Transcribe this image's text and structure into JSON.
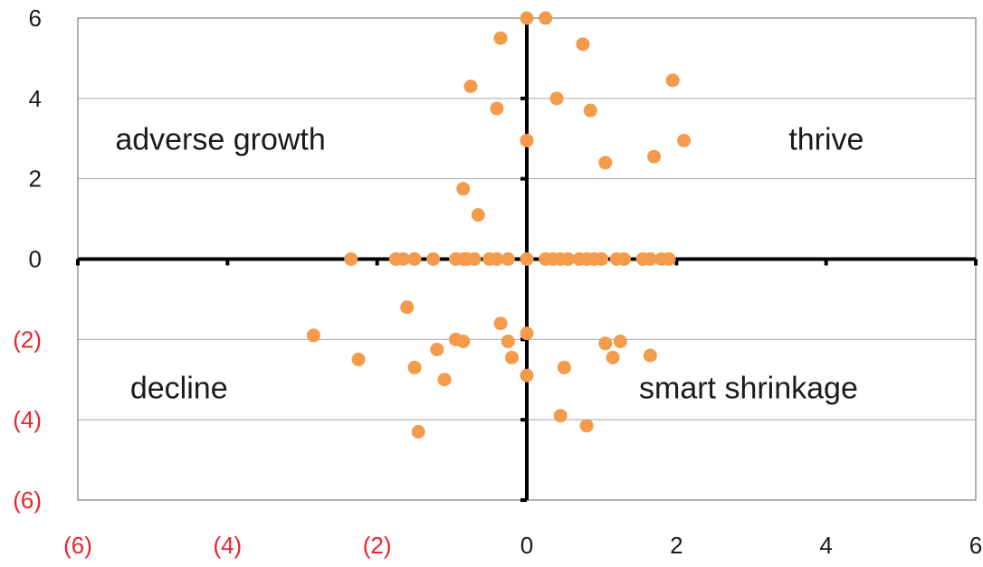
{
  "chart_data": {
    "type": "scatter",
    "title": "",
    "xlabel": "",
    "ylabel": "",
    "xlim": [
      -6,
      6
    ],
    "ylim": [
      -6,
      6
    ],
    "x_ticks": [
      {
        "value": -6,
        "label": "(6)",
        "negative": true
      },
      {
        "value": -4,
        "label": "(4)",
        "negative": true
      },
      {
        "value": -2,
        "label": "(2)",
        "negative": true
      },
      {
        "value": 0,
        "label": "0",
        "negative": false
      },
      {
        "value": 2,
        "label": "2",
        "negative": false
      },
      {
        "value": 4,
        "label": "4",
        "negative": false
      },
      {
        "value": 6,
        "label": "6",
        "negative": false
      }
    ],
    "y_ticks": [
      {
        "value": 6,
        "label": "6",
        "negative": false
      },
      {
        "value": 4,
        "label": "4",
        "negative": false
      },
      {
        "value": 2,
        "label": "2",
        "negative": false
      },
      {
        "value": 0,
        "label": "0",
        "negative": false
      },
      {
        "value": -2,
        "label": "(2)",
        "negative": true
      },
      {
        "value": -4,
        "label": "(4)",
        "negative": true
      },
      {
        "value": -6,
        "label": "(6)",
        "negative": true
      }
    ],
    "grid": true,
    "quadrant_labels": [
      {
        "text": "adverse growth",
        "x": -5.5,
        "y": 3
      },
      {
        "text": "thrive",
        "x": 3.5,
        "y": 3
      },
      {
        "text": "decline",
        "x": -5.3,
        "y": -3.2
      },
      {
        "text": "smart shrinkage",
        "x": 1.5,
        "y": -3.2
      }
    ],
    "colors": {
      "points": "#f39a4b",
      "axis": "#000000",
      "grid": "#a6a6a6",
      "frame": "#7f7f7f",
      "tick_label_positive": "#1a1a1a",
      "tick_label_negative": "#e8242b",
      "quadrant_label": "#1a1a1a"
    },
    "series": [
      {
        "points": [
          [
            0.0,
            6.0
          ],
          [
            0.25,
            6.0
          ],
          [
            -0.35,
            5.5
          ],
          [
            0.75,
            5.35
          ],
          [
            -0.75,
            4.3
          ],
          [
            1.95,
            4.45
          ],
          [
            0.4,
            4.0
          ],
          [
            0.85,
            3.7
          ],
          [
            -0.4,
            3.75
          ],
          [
            0.0,
            2.95
          ],
          [
            2.1,
            2.95
          ],
          [
            1.05,
            2.4
          ],
          [
            1.7,
            2.55
          ],
          [
            -0.85,
            1.75
          ],
          [
            -0.65,
            1.1
          ],
          [
            -2.35,
            0.0
          ],
          [
            -1.75,
            0.0
          ],
          [
            -1.65,
            0.0
          ],
          [
            -1.5,
            0.0
          ],
          [
            -1.25,
            0.0
          ],
          [
            -0.95,
            0.0
          ],
          [
            -0.85,
            0.0
          ],
          [
            -0.8,
            0.0
          ],
          [
            -0.7,
            0.0
          ],
          [
            -0.5,
            0.0
          ],
          [
            -0.4,
            0.0
          ],
          [
            -0.25,
            0.0
          ],
          [
            0.0,
            0.0
          ],
          [
            0.25,
            0.0
          ],
          [
            0.35,
            0.0
          ],
          [
            0.45,
            0.0
          ],
          [
            0.55,
            0.0
          ],
          [
            0.7,
            0.0
          ],
          [
            0.8,
            0.0
          ],
          [
            0.9,
            0.0
          ],
          [
            1.0,
            0.0
          ],
          [
            1.2,
            0.0
          ],
          [
            1.3,
            0.0
          ],
          [
            1.55,
            0.0
          ],
          [
            1.65,
            0.0
          ],
          [
            1.8,
            0.0
          ],
          [
            1.9,
            0.0
          ],
          [
            -1.6,
            -1.2
          ],
          [
            -0.35,
            -1.6
          ],
          [
            0.0,
            -1.85
          ],
          [
            -2.85,
            -1.9
          ],
          [
            -0.95,
            -2.0
          ],
          [
            -0.85,
            -2.05
          ],
          [
            -0.25,
            -2.05
          ],
          [
            1.05,
            -2.1
          ],
          [
            1.25,
            -2.05
          ],
          [
            -1.2,
            -2.25
          ],
          [
            -2.25,
            -2.5
          ],
          [
            -0.2,
            -2.45
          ],
          [
            1.15,
            -2.45
          ],
          [
            1.65,
            -2.4
          ],
          [
            -1.5,
            -2.7
          ],
          [
            0.5,
            -2.7
          ],
          [
            -1.1,
            -3.0
          ],
          [
            0.0,
            -2.9
          ],
          [
            0.45,
            -3.9
          ],
          [
            0.8,
            -4.15
          ],
          [
            -1.45,
            -4.3
          ]
        ]
      }
    ]
  }
}
